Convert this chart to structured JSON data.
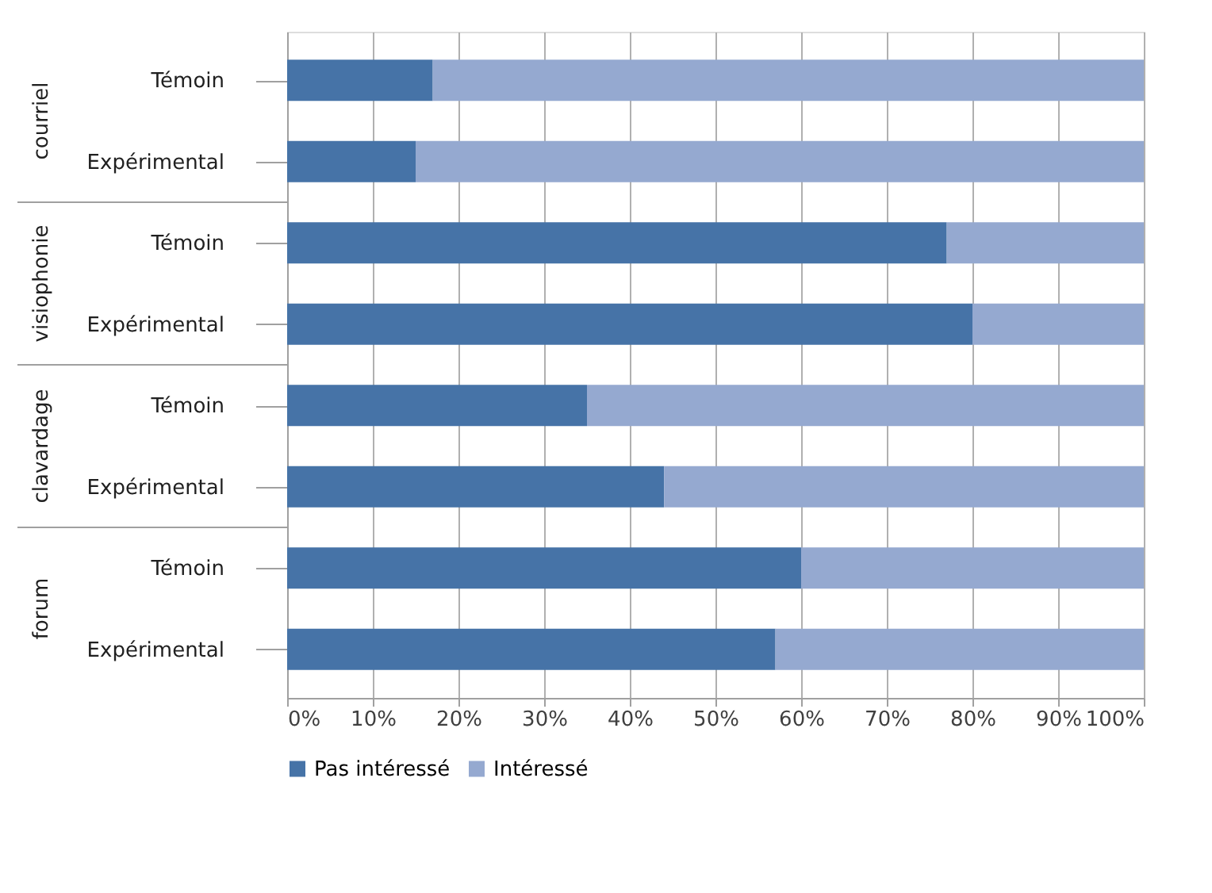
{
  "chart_data": {
    "type": "bar",
    "orientation": "horizontal",
    "stacked": true,
    "categories": [
      "Témoin",
      "Expérimental",
      "Témoin",
      "Expérimental",
      "Témoin",
      "Expérimental",
      "Témoin",
      "Expérimental"
    ],
    "series": [
      {
        "name": "Pas intéressé",
        "color": "#4673a7",
        "values": [
          17,
          15,
          77,
          80,
          35,
          44,
          60,
          57
        ]
      },
      {
        "name": "Intéressé",
        "color": "#95a9d0",
        "values": [
          83,
          85,
          23,
          20,
          65,
          56,
          40,
          43
        ]
      }
    ],
    "annotations": [
      "courriel",
      "visiophonie",
      "clavardage",
      "forum"
    ],
    "xlim": [
      0,
      100
    ],
    "xticks": [
      {
        "value": 0,
        "label": "0%"
      },
      {
        "value": 10,
        "label": "10%"
      },
      {
        "value": 20,
        "label": "20%"
      },
      {
        "value": 30,
        "label": "30%"
      },
      {
        "value": 40,
        "label": "40%"
      },
      {
        "value": 50,
        "label": "50%"
      },
      {
        "value": 60,
        "label": "60%"
      },
      {
        "value": 70,
        "label": "70%"
      },
      {
        "value": 80,
        "label": "80%"
      },
      {
        "value": 90,
        "label": "90%"
      },
      {
        "value": 100,
        "label": "100%"
      }
    ],
    "grid": "x",
    "legend": "bottom"
  }
}
